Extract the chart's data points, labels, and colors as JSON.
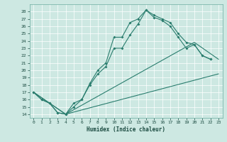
{
  "xlabel": "Humidex (Indice chaleur)",
  "bg_color": "#cde8e2",
  "grid_color": "#ffffff",
  "line_color": "#2a7d6e",
  "xlim": [
    -0.5,
    23.5
  ],
  "ylim": [
    13.5,
    29.0
  ],
  "xticks": [
    0,
    1,
    2,
    3,
    4,
    5,
    6,
    7,
    8,
    9,
    10,
    11,
    12,
    13,
    14,
    15,
    16,
    17,
    18,
    19,
    20,
    21,
    22,
    23
  ],
  "yticks": [
    14,
    15,
    16,
    17,
    18,
    19,
    20,
    21,
    22,
    23,
    24,
    25,
    26,
    27,
    28
  ],
  "curve1_x": [
    0,
    1,
    2,
    3,
    4,
    5,
    6,
    7,
    8,
    9,
    10,
    11,
    12,
    13,
    14,
    15,
    16,
    17,
    18,
    19,
    20,
    21,
    22
  ],
  "curve1_y": [
    17.0,
    16.0,
    15.5,
    14.2,
    14.0,
    15.5,
    16.0,
    18.2,
    20.0,
    21.0,
    24.5,
    24.5,
    26.5,
    27.0,
    28.2,
    27.5,
    27.0,
    26.5,
    25.0,
    23.8,
    23.5,
    22.0,
    21.5
  ],
  "curve2_x": [
    0,
    1,
    2,
    3,
    4,
    5,
    6,
    7,
    8,
    9,
    10,
    11,
    12,
    13,
    14,
    15,
    16,
    17,
    18,
    19,
    20,
    21,
    22
  ],
  "curve2_y": [
    17.0,
    16.0,
    15.5,
    14.2,
    14.0,
    15.0,
    16.0,
    18.0,
    19.5,
    20.5,
    23.0,
    23.0,
    24.8,
    26.3,
    28.2,
    27.2,
    26.8,
    26.0,
    24.5,
    23.0,
    23.5,
    22.0,
    21.5
  ],
  "line3_x": [
    0,
    4,
    23
  ],
  "line3_y": [
    17.0,
    14.0,
    19.5
  ],
  "line4_x": [
    0,
    4,
    20,
    23
  ],
  "line4_y": [
    17.0,
    14.0,
    23.8,
    21.5
  ]
}
